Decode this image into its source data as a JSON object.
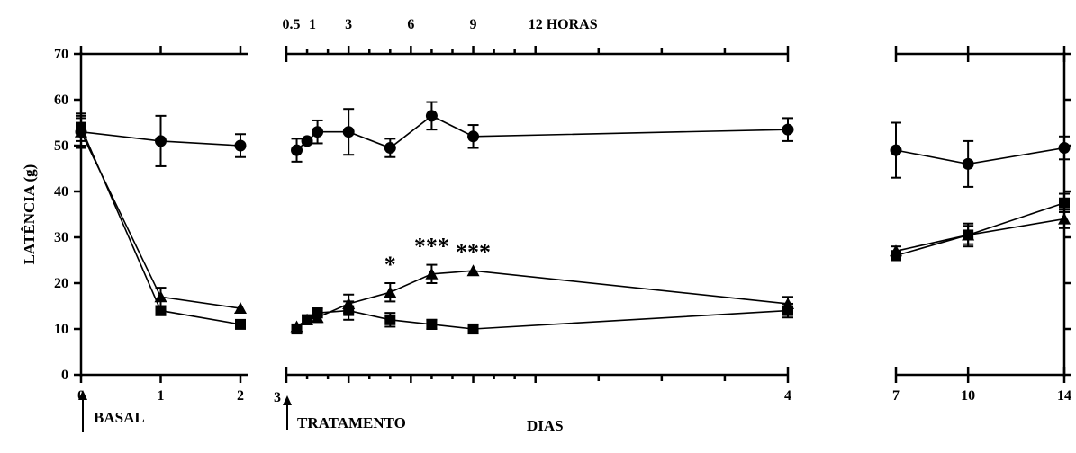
{
  "chart_data": {
    "type": "line",
    "ylabel": "LATÊNCIA (g)",
    "ylim": [
      0,
      70
    ],
    "yticks": [
      "0",
      "10",
      "20",
      "30",
      "40",
      "50",
      "60",
      "70"
    ],
    "top_labels": [
      "0.5",
      "1",
      "3",
      "6",
      "9",
      "12 HORAS"
    ],
    "annotations": {
      "basal": "BASAL",
      "tratamento": "TRATAMENTO",
      "dias": "DIAS"
    },
    "panels": [
      {
        "id": "basal",
        "xlabels": [
          "0",
          "1",
          "2"
        ],
        "series": [
          {
            "marker": "circle",
            "x": [
              0,
              1,
              2
            ],
            "y": [
              53,
              51,
              50
            ],
            "err": [
              3,
              5.5,
              2.5
            ]
          },
          {
            "marker": "triangle",
            "x": [
              0,
              1,
              2
            ],
            "y": [
              53,
              17,
              14.5
            ],
            "err": [
              3.5,
              2,
              0
            ]
          },
          {
            "marker": "square",
            "x": [
              0,
              1,
              2
            ],
            "y": [
              54,
              14,
              11
            ],
            "err": [
              3,
              1,
              0.5
            ]
          }
        ]
      },
      {
        "id": "tratamento",
        "x_unit": "hours after treatment on day 3",
        "xlabels_top": [
          "0.5",
          "1",
          "3",
          "6",
          "9",
          "12 HORAS"
        ],
        "xlabels_bottom": [
          "3",
          "4"
        ],
        "series": [
          {
            "marker": "circle",
            "x": [
              0.5,
              1,
              1.5,
              3,
              5,
              7,
              9,
              24
            ],
            "y": [
              49,
              51,
              53,
              53,
              49.5,
              56.5,
              52,
              53.5
            ],
            "err": [
              2.5,
              0,
              2.5,
              5,
              2,
              3,
              2.5,
              2.5
            ]
          },
          {
            "marker": "triangle",
            "x": [
              0.5,
              1,
              1.5,
              3,
              5,
              7,
              9,
              24
            ],
            "y": [
              10.5,
              12,
              12.5,
              15.5,
              18,
              22,
              22.7,
              15.5
            ],
            "err": [
              0,
              0,
              1,
              2,
              2,
              2,
              0,
              1.5
            ]
          },
          {
            "marker": "square",
            "x": [
              0.5,
              1,
              1.5,
              3,
              5,
              7,
              9,
              24
            ],
            "y": [
              10,
              12,
              13.5,
              14,
              12,
              11,
              10,
              14
            ],
            "err": [
              1,
              1,
              1,
              2,
              1.5,
              1,
              1,
              1.5
            ]
          }
        ],
        "significance": [
          {
            "x": 5,
            "label": "*"
          },
          {
            "x": 7,
            "label": "***"
          },
          {
            "x": 9,
            "label": "***"
          }
        ]
      },
      {
        "id": "dias",
        "xlabels": [
          "7",
          "10",
          "14"
        ],
        "series": [
          {
            "marker": "circle",
            "x": [
              7,
              10,
              14
            ],
            "y": [
              49,
              46,
              49.5
            ],
            "err": [
              6,
              5,
              2.5
            ]
          },
          {
            "marker": "triangle",
            "x": [
              7,
              10,
              14
            ],
            "y": [
              27,
              30.5,
              34
            ],
            "err": [
              1,
              2.5,
              2
            ]
          },
          {
            "marker": "square",
            "x": [
              7,
              10,
              14
            ],
            "y": [
              26,
              30.5,
              37.5
            ],
            "err": [
              1,
              2,
              2
            ]
          }
        ]
      }
    ]
  }
}
